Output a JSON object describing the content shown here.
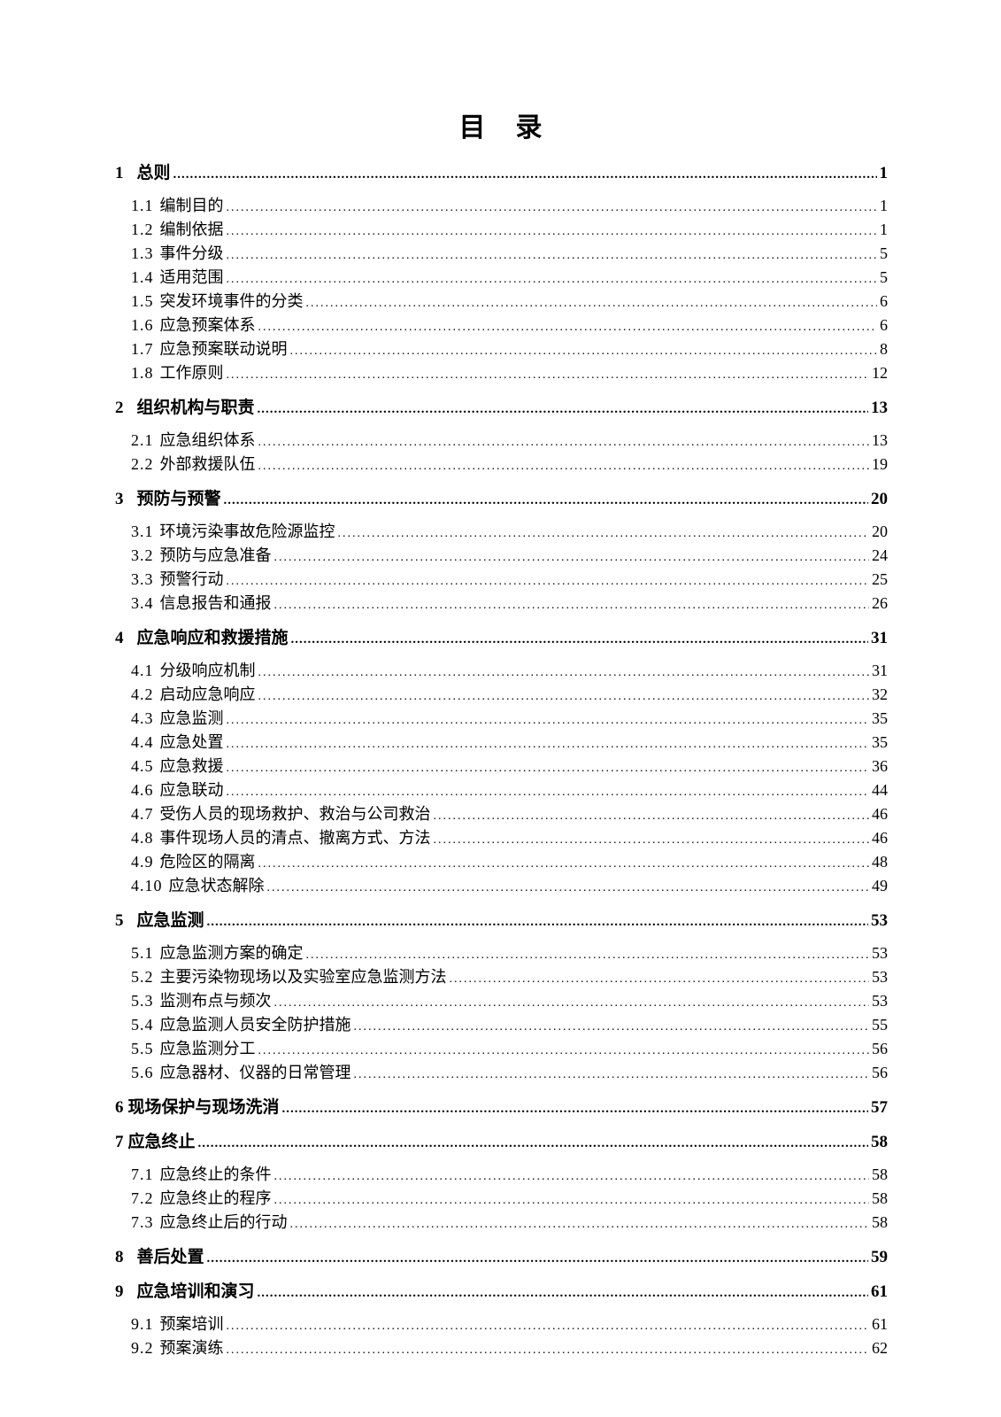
{
  "document": {
    "title": "目　录"
  },
  "toc": {
    "entries": [
      {
        "num": "1",
        "label": "总则",
        "page": "1",
        "level": 1
      },
      {
        "num": "1.1",
        "label": "编制目的",
        "page": "1",
        "level": 2
      },
      {
        "num": "1.2",
        "label": "编制依据",
        "page": "1",
        "level": 2
      },
      {
        "num": "1.3",
        "label": "事件分级",
        "page": "5",
        "level": 2
      },
      {
        "num": "1.4",
        "label": "适用范围",
        "page": "5",
        "level": 2
      },
      {
        "num": "1.5",
        "label": "突发环境事件的分类",
        "page": "6",
        "level": 2
      },
      {
        "num": "1.6",
        "label": "应急预案体系",
        "page": "6",
        "level": 2
      },
      {
        "num": "1.7",
        "label": "应急预案联动说明",
        "page": "8",
        "level": 2
      },
      {
        "num": "1.8",
        "label": "工作原则",
        "page": "12",
        "level": 2
      },
      {
        "num": "2",
        "label": "组织机构与职责",
        "page": "13",
        "level": 1
      },
      {
        "num": "2.1",
        "label": "应急组织体系",
        "page": "13",
        "level": 2
      },
      {
        "num": "2.2",
        "label": "外部救援队伍",
        "page": "19",
        "level": 2
      },
      {
        "num": "3",
        "label": "预防与预警",
        "page": "20",
        "level": 1
      },
      {
        "num": "3.1",
        "label": "环境污染事故危险源监控",
        "page": "20",
        "level": 2
      },
      {
        "num": "3.2",
        "label": "预防与应急准备",
        "page": "24",
        "level": 2
      },
      {
        "num": "3.3",
        "label": "预警行动",
        "page": "25",
        "level": 2
      },
      {
        "num": "3.4",
        "label": "信息报告和通报",
        "page": "26",
        "level": 2
      },
      {
        "num": "4",
        "label": "应急响应和救援措施",
        "page": "31",
        "level": 1
      },
      {
        "num": "4.1",
        "label": "分级响应机制",
        "page": "31",
        "level": 2
      },
      {
        "num": "4.2",
        "label": "启动应急响应",
        "page": "32",
        "level": 2
      },
      {
        "num": "4.3",
        "label": "应急监测",
        "page": "35",
        "level": 2
      },
      {
        "num": "4.4",
        "label": "应急处置",
        "page": "35",
        "level": 2
      },
      {
        "num": "4.5",
        "label": "应急救援",
        "page": "36",
        "level": 2
      },
      {
        "num": "4.6",
        "label": "应急联动",
        "page": "44",
        "level": 2
      },
      {
        "num": "4.7",
        "label": "受伤人员的现场救护、救治与公司救治",
        "page": "46",
        "level": 2
      },
      {
        "num": "4.8",
        "label": "事件现场人员的清点、撤离方式、方法",
        "page": "46",
        "level": 2
      },
      {
        "num": "4.9",
        "label": "危险区的隔离",
        "page": "48",
        "level": 2
      },
      {
        "num": "4.10",
        "label": "应急状态解除",
        "page": "49",
        "level": 2
      },
      {
        "num": "5",
        "label": "应急监测",
        "page": "53",
        "level": 1
      },
      {
        "num": "5.1",
        "label": "应急监测方案的确定",
        "page": "53",
        "level": 2
      },
      {
        "num": "5.2",
        "label": "主要污染物现场以及实验室应急监测方法",
        "page": "53",
        "level": 2
      },
      {
        "num": "5.3",
        "label": "监测布点与频次",
        "page": "53",
        "level": 2
      },
      {
        "num": "5.4",
        "label": "应急监测人员安全防护措施",
        "page": "55",
        "level": 2
      },
      {
        "num": "5.5",
        "label": "应急监测分工",
        "page": "56",
        "level": 2
      },
      {
        "num": "5.6",
        "label": "应急器材、仪器的日常管理",
        "page": "56",
        "level": 2
      },
      {
        "num": "6",
        "label": "现场保护与现场洗消",
        "page": "57",
        "level": 1,
        "tight": true
      },
      {
        "num": "7",
        "label": "应急终止",
        "page": "58",
        "level": 1,
        "tight": true
      },
      {
        "num": "7.1",
        "label": "应急终止的条件",
        "page": "58",
        "level": 2
      },
      {
        "num": "7.2",
        "label": "应急终止的程序",
        "page": "58",
        "level": 2
      },
      {
        "num": "7.3",
        "label": "应急终止后的行动",
        "page": "58",
        "level": 2
      },
      {
        "num": "8",
        "label": "善后处置",
        "page": "59",
        "level": 1
      },
      {
        "num": "9",
        "label": "应急培训和演习",
        "page": "61",
        "level": 1
      },
      {
        "num": "9.1",
        "label": "预案培训",
        "page": "61",
        "level": 2
      },
      {
        "num": "9.2",
        "label": "预案演练",
        "page": "62",
        "level": 2
      }
    ]
  }
}
